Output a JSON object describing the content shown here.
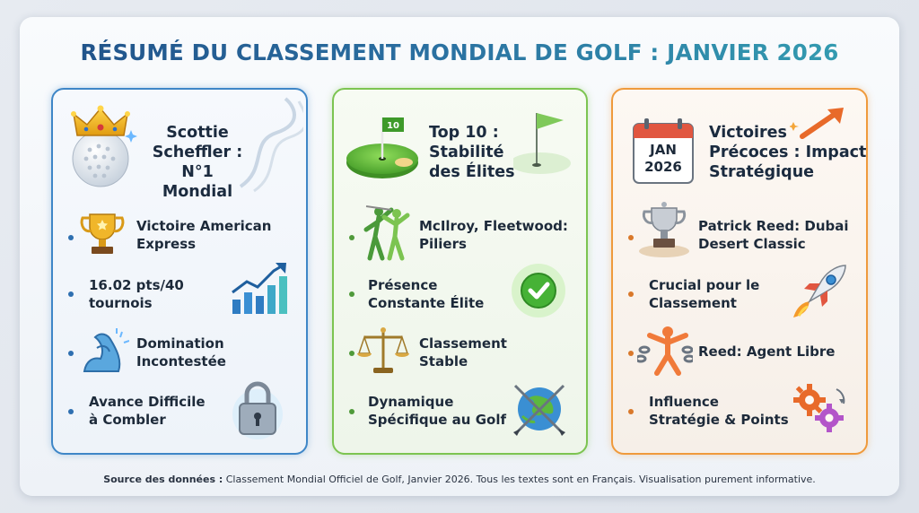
{
  "title": "RÉSUMÉ DU CLASSEMENT MONDIAL DE GOLF : JANVIER 2026",
  "cards": [
    {
      "heading_lines": [
        "Scottie",
        "Scheffler :",
        "N°1 Mondial"
      ],
      "items": [
        {
          "lines": [
            "Victoire American",
            "Express"
          ],
          "icon": "trophy-icon"
        },
        {
          "lines": [
            "16.02 pts/40",
            "tournois"
          ],
          "icon": "rising-chart-icon"
        },
        {
          "lines": [
            "Domination",
            "Incontestée"
          ],
          "icon": "flexed-arm-icon"
        },
        {
          "lines": [
            "Avance Difficile",
            "à Combler"
          ],
          "icon": "padlock-icon"
        }
      ],
      "head_icon": "crowned-golf-ball-icon",
      "accent": "#3e86c7"
    },
    {
      "heading_lines": [
        "Top 10 :",
        "Stabilité",
        "des Élites"
      ],
      "flag_label": "10",
      "items": [
        {
          "lines": [
            "McIlroy, Fleetwood:",
            "Piliers"
          ],
          "icon": "golfers-icon"
        },
        {
          "lines": [
            "Présence",
            "Constante Élite"
          ],
          "icon": "checkmark-icon"
        },
        {
          "lines": [
            "Classement",
            "Stable"
          ],
          "icon": "scales-icon"
        },
        {
          "lines": [
            "Dynamique",
            "Spécifique au Golf"
          ],
          "icon": "globe-clubs-icon"
        }
      ],
      "head_icon": "putting-green-icon",
      "accent": "#7cc451"
    },
    {
      "heading_lines": [
        "Victoires",
        "Précoces : Impact",
        "Stratégique"
      ],
      "calendar": {
        "month": "JAN",
        "year": "2026"
      },
      "items": [
        {
          "lines": [
            "Patrick Reed: Dubai",
            "Desert Classic"
          ],
          "icon": "cup-icon"
        },
        {
          "lines": [
            "Crucial pour le",
            "Classement"
          ],
          "icon": "rocket-icon"
        },
        {
          "lines": [
            "Reed: Agent Libre"
          ],
          "icon": "broken-chain-icon"
        },
        {
          "lines": [
            "Influence",
            "Stratégie & Points"
          ],
          "icon": "gears-icon"
        }
      ],
      "head_icon": "calendar-icon",
      "accent": "#ef9a3c"
    }
  ],
  "source": {
    "label": "Source des données :",
    "text": " Classement Mondial Officiel de Golf, Janvier 2026. Tous les textes sont en Français. Visualisation purement informative."
  }
}
